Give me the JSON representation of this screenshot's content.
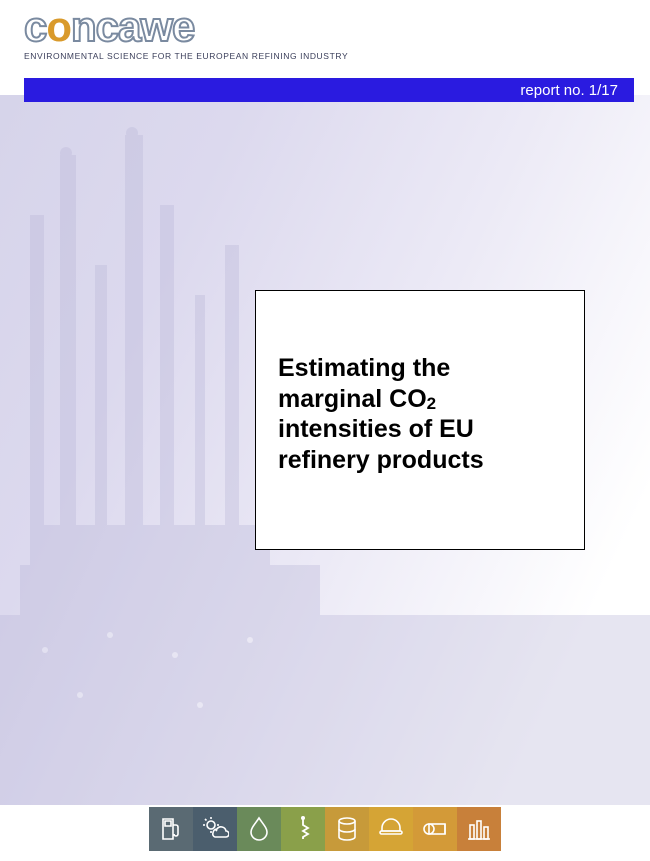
{
  "logo": {
    "text_c1": "c",
    "text_o": "o",
    "text_rest": "ncawe",
    "text_stroke_color": "#7a8aa0",
    "text_orange_color": "#d99a2b"
  },
  "tagline": "ENVIRONMENTAL SCIENCE FOR THE EUROPEAN REFINING INDUSTRY",
  "report_bar": {
    "label": "report no. 1/17",
    "background_color": "#2a1be0",
    "text_color": "#ffffff"
  },
  "title": {
    "line1": "Estimating the",
    "line2_a": "marginal CO",
    "line2_sub": "2",
    "line3": "intensities of EU",
    "line4": "refinery products",
    "border_color": "#000000",
    "background_color": "#ffffff",
    "font_size": 25
  },
  "background": {
    "gradient_from": "#d6d4ea",
    "gradient_to": "#ffffff",
    "silhouette_color": "#b9b6d8"
  },
  "footer_icons": [
    {
      "name": "fuel-pump-icon",
      "bg": "#5a6a73"
    },
    {
      "name": "sun-cloud-icon",
      "bg": "#4b5e6d"
    },
    {
      "name": "water-drop-icon",
      "bg": "#6a8a5a"
    },
    {
      "name": "health-icon",
      "bg": "#8aa04a"
    },
    {
      "name": "barrel-icon",
      "bg": "#c79a3a"
    },
    {
      "name": "safety-icon",
      "bg": "#d5a435"
    },
    {
      "name": "pipeline-icon",
      "bg": "#d39a38"
    },
    {
      "name": "refinery-icon",
      "bg": "#c8803a"
    }
  ],
  "icon_fg_color": "#ffffff"
}
